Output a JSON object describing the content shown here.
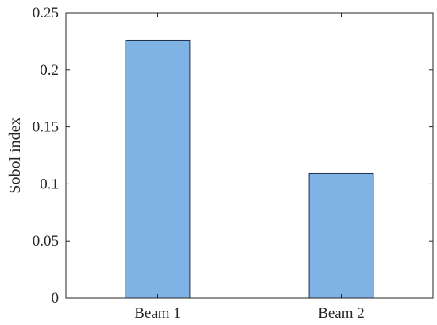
{
  "chart_data": {
    "type": "bar",
    "categories": [
      "Beam 1",
      "Beam 2"
    ],
    "values": [
      0.226,
      0.109
    ],
    "title": "",
    "xlabel": "",
    "ylabel": "Sobol index",
    "ylim": [
      0,
      0.25
    ],
    "yticks": [
      0,
      0.05,
      0.1,
      0.15,
      0.2,
      0.25
    ],
    "ytick_labels": [
      "0",
      "0.05",
      "0.1",
      "0.15",
      "0.2",
      "0.25"
    ],
    "grid": false,
    "box": true,
    "bar_color": "#7fb2e5",
    "bar_edge_color": "#1f2f4a",
    "axis_color": "#262626"
  }
}
